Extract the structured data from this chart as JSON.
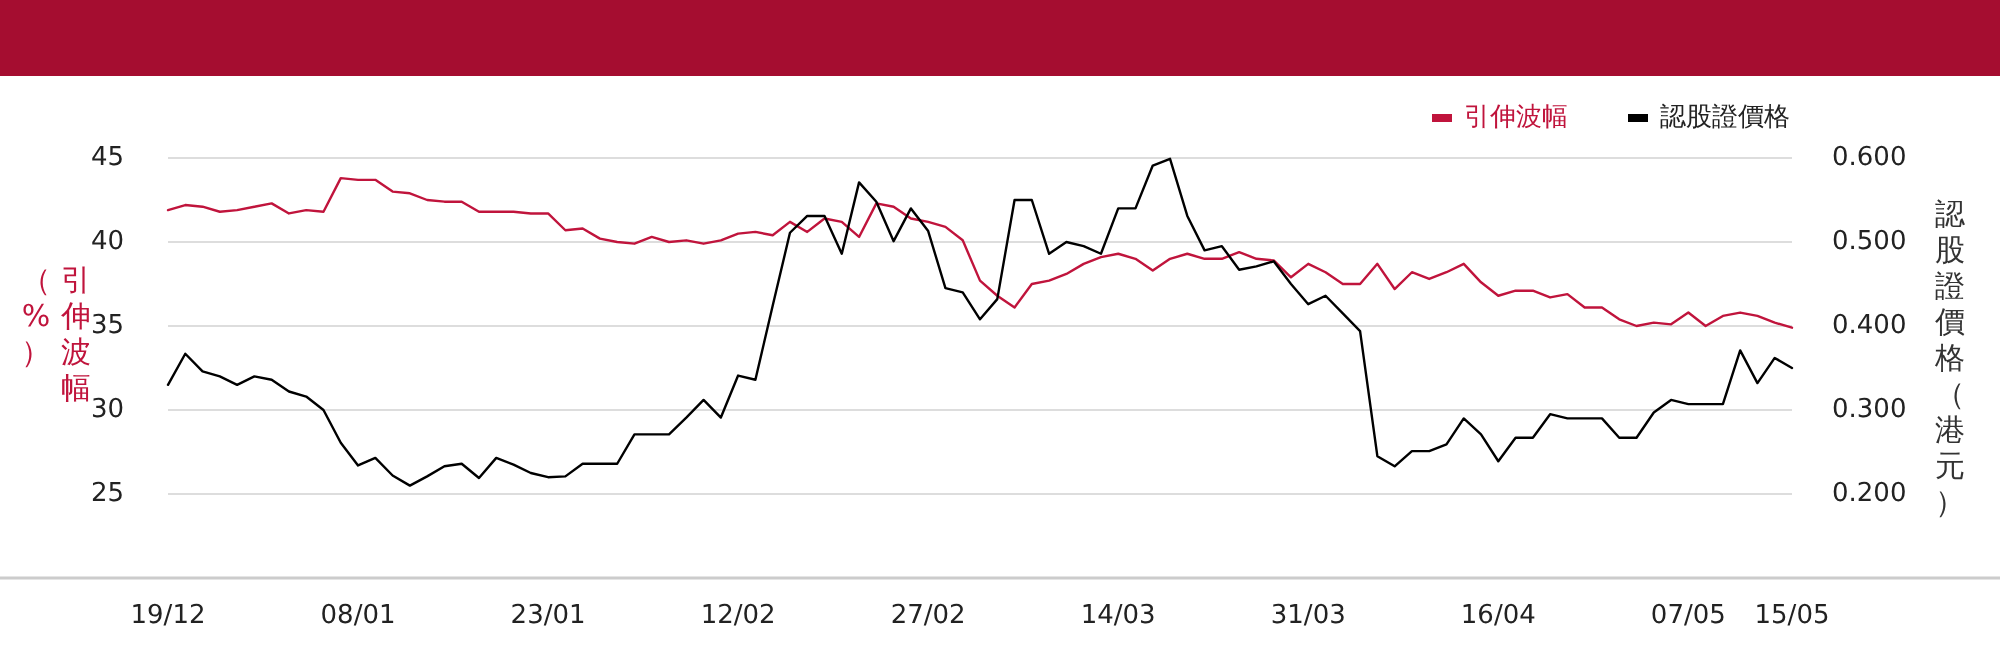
{
  "chart_data": {
    "type": "line",
    "categories": [
      "19/12",
      null,
      null,
      null,
      null,
      null,
      null,
      null,
      null,
      null,
      null,
      "08/01",
      null,
      null,
      null,
      null,
      null,
      null,
      null,
      null,
      null,
      null,
      "23/01",
      null,
      null,
      null,
      null,
      null,
      null,
      null,
      null,
      null,
      null,
      "12/02",
      null,
      null,
      null,
      null,
      null,
      null,
      null,
      null,
      null,
      null,
      "27/02",
      null,
      null,
      null,
      null,
      null,
      null,
      null,
      null,
      null,
      null,
      "14/03",
      null,
      null,
      null,
      null,
      null,
      null,
      null,
      null,
      null,
      null,
      "31/03",
      null,
      null,
      null,
      null,
      null,
      null,
      null,
      null,
      null,
      null,
      "16/04",
      null,
      null,
      null,
      null,
      null,
      null,
      null,
      null,
      null,
      null,
      "07/05",
      null,
      null,
      null,
      null,
      null,
      "15/05"
    ],
    "series": [
      {
        "name": "引伸波幅",
        "color": "#c0143c",
        "values": [
          41.9,
          42.2,
          42.1,
          41.8,
          41.9,
          42.1,
          42.3,
          41.7,
          41.9,
          41.8,
          43.8,
          43.7,
          43.7,
          43.0,
          42.9,
          42.5,
          42.4,
          42.4,
          41.8,
          41.8,
          41.8,
          41.7,
          41.7,
          40.7,
          40.8,
          40.2,
          40.0,
          39.9,
          40.3,
          40.0,
          40.1,
          39.9,
          40.1,
          40.5,
          40.6,
          40.4,
          41.2,
          40.6,
          41.4,
          41.2,
          40.3,
          42.3,
          42.1,
          41.4,
          41.2,
          40.9,
          40.1,
          37.7,
          36.8,
          36.1,
          37.5,
          37.7,
          38.1,
          38.7,
          39.1,
          39.3,
          39.0,
          38.3,
          39.0,
          39.3,
          39.0,
          39.0,
          39.4,
          39.0,
          38.9,
          37.9,
          38.7,
          38.2,
          37.5,
          37.5,
          38.7,
          37.2,
          38.2,
          37.8,
          38.2,
          38.7,
          37.6,
          36.8,
          37.1,
          37.1,
          36.7,
          36.9,
          36.1,
          36.1,
          35.4,
          35.0,
          35.2,
          35.1,
          35.8,
          35.0,
          35.6,
          35.8,
          35.6,
          35.2,
          34.9
        ]
      },
      {
        "name": "認股證價格",
        "color": "#000000",
        "axis": "y2",
        "values": [
          0.33,
          0.367,
          0.346,
          0.34,
          0.33,
          0.34,
          0.336,
          0.322,
          0.316,
          0.3,
          0.261,
          0.234,
          0.243,
          0.222,
          0.21,
          0.221,
          0.233,
          0.236,
          0.219,
          0.243,
          0.235,
          0.225,
          0.22,
          0.221,
          0.236,
          0.236,
          0.236,
          0.271,
          0.271,
          0.271,
          0.291,
          0.312,
          0.291,
          0.341,
          0.336,
          0.424,
          0.511,
          0.531,
          0.531,
          0.486,
          0.571,
          0.548,
          0.501,
          0.54,
          0.513,
          0.445,
          0.44,
          0.408,
          0.432,
          0.55,
          0.55,
          0.486,
          0.5,
          0.495,
          0.486,
          0.54,
          0.54,
          0.591,
          0.599,
          0.531,
          0.49,
          0.495,
          0.467,
          0.471,
          0.477,
          0.45,
          0.426,
          0.436,
          0.415,
          0.394,
          0.245,
          0.233,
          0.251,
          0.251,
          0.259,
          0.29,
          0.271,
          0.239,
          0.267,
          0.267,
          0.295,
          0.29,
          0.29,
          0.29,
          0.267,
          0.267,
          0.297,
          0.312,
          0.307,
          0.307,
          0.307,
          0.371,
          0.332,
          0.362,
          0.35
        ]
      }
    ],
    "ylabel": "引伸波幅（%）",
    "y2label": "認股證價格（港元）",
    "ylim": [
      20,
      45
    ],
    "yticks": [
      25,
      30,
      35,
      40,
      45
    ],
    "y2lim": [
      0.1,
      0.6
    ],
    "y2ticks": [
      {
        "value": 0.2,
        "label": "0.200"
      },
      {
        "value": 0.3,
        "label": "0.300"
      },
      {
        "value": 0.4,
        "label": "0.400"
      },
      {
        "value": 0.5,
        "label": "0.500"
      },
      {
        "value": 0.6,
        "label": "0.600"
      }
    ],
    "grid": "y",
    "legend": "top right",
    "marker": "none",
    "line_style": "solid"
  }
}
